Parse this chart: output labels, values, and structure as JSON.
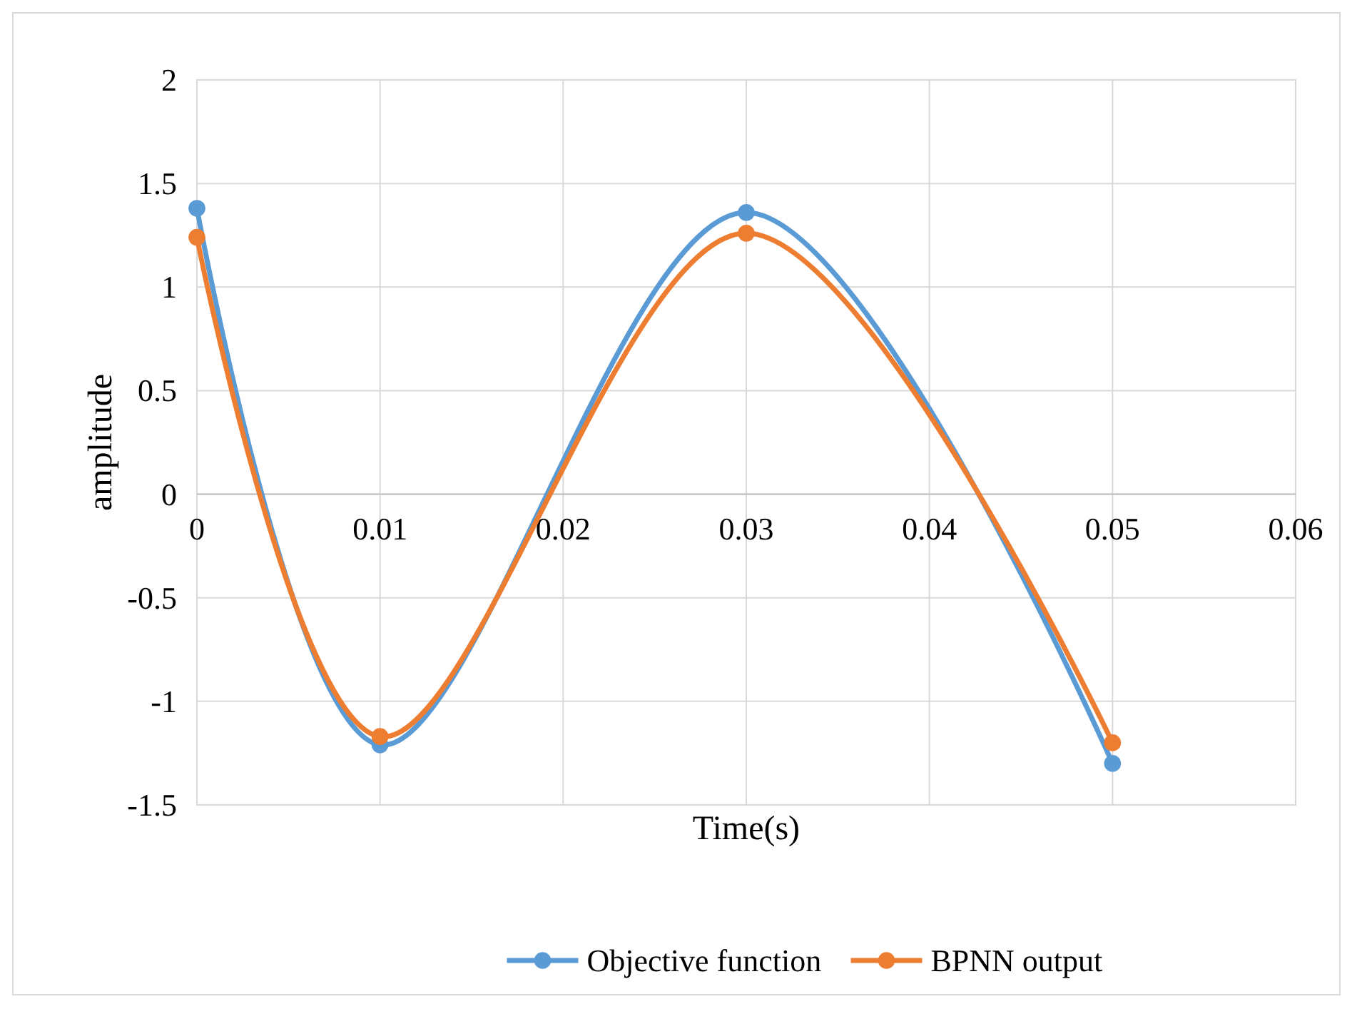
{
  "chart_data": {
    "type": "line",
    "xlabel": "Time(s)",
    "ylabel": "amplitude",
    "xlim": [
      0,
      0.06
    ],
    "xticks": [
      0,
      0.01,
      0.02,
      0.03,
      0.04,
      0.05,
      0.06
    ],
    "ylim": [
      -1.5,
      2
    ],
    "yticks": [
      -1.5,
      -1,
      -0.5,
      0,
      0.5,
      1,
      1.5,
      2
    ],
    "grid": true,
    "legend": "bottom",
    "marker": "circle",
    "line_style": "solid",
    "series": [
      {
        "name": "Objective function",
        "color": "#5b9bd5",
        "x": [
          0,
          0.01,
          0.03,
          0.05
        ],
        "values": [
          1.38,
          -1.21,
          1.36,
          -1.3
        ]
      },
      {
        "name": "BPNN output",
        "color": "#ed7d31",
        "x": [
          0,
          0.01,
          0.03,
          0.05
        ],
        "values": [
          1.24,
          -1.17,
          1.26,
          -1.2
        ]
      }
    ]
  }
}
